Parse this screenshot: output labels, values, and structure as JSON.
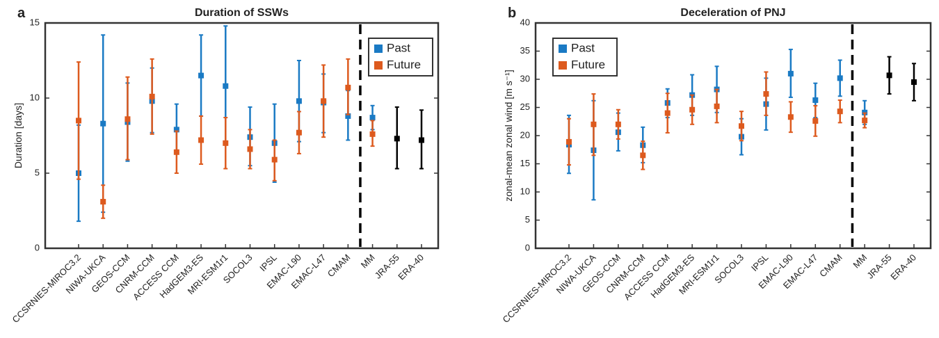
{
  "chart_data": [
    {
      "type": "errorbar",
      "panel_label": "a",
      "title": "Duration of SSWs",
      "y_label": "Duration [days]",
      "categories": [
        "CCSRNIES-MIROC3.2",
        "NIWA-UKCA",
        "GEOS-CCM",
        "CNRM-CCM",
        "ACCESS CCM",
        "HadGEM3-ES",
        "MRI-ESM1r1",
        "SOCOL3",
        "IPSL",
        "EMAC-L90",
        "EMAC-L47",
        "CMAM",
        "MM",
        "JRA-55",
        "ERA-40"
      ],
      "series": [
        {
          "name": "Past",
          "color": "#1a7ac4",
          "values": [
            5.0,
            8.3,
            8.4,
            9.8,
            7.9,
            11.5,
            10.8,
            7.4,
            7.0,
            9.8,
            9.7,
            8.8,
            8.7,
            null,
            null
          ],
          "lower": [
            1.8,
            2.4,
            5.8,
            7.7,
            6.3,
            8.8,
            7.0,
            5.5,
            4.4,
            7.1,
            7.7,
            7.2,
            7.9,
            null,
            null
          ],
          "upper": [
            8.2,
            14.2,
            11.0,
            12.0,
            9.6,
            14.2,
            14.8,
            9.4,
            9.6,
            12.5,
            11.6,
            10.5,
            9.5,
            null,
            null
          ]
        },
        {
          "name": "Future",
          "color": "#dd5a1e",
          "values": [
            8.5,
            3.1,
            8.6,
            10.1,
            6.4,
            7.2,
            7.0,
            6.6,
            5.9,
            7.7,
            9.8,
            10.7,
            7.6,
            null,
            null
          ],
          "lower": [
            4.6,
            2.0,
            5.9,
            7.6,
            5.0,
            5.6,
            5.3,
            5.3,
            4.5,
            6.3,
            7.4,
            8.9,
            6.8,
            null,
            null
          ],
          "upper": [
            12.4,
            4.2,
            11.4,
            12.6,
            7.8,
            8.8,
            8.7,
            7.9,
            7.2,
            9.1,
            12.2,
            12.6,
            8.5,
            null,
            null
          ]
        }
      ],
      "reference": {
        "color": "#000000",
        "values": [
          null,
          null,
          null,
          null,
          null,
          null,
          null,
          null,
          null,
          null,
          null,
          null,
          null,
          7.3,
          7.2
        ],
        "lower": [
          null,
          null,
          null,
          null,
          null,
          null,
          null,
          null,
          null,
          null,
          null,
          null,
          null,
          5.3,
          5.3
        ],
        "upper": [
          null,
          null,
          null,
          null,
          null,
          null,
          null,
          null,
          null,
          null,
          null,
          null,
          null,
          9.4,
          9.2
        ]
      },
      "ylim": [
        0,
        15
      ],
      "yticks": [
        0,
        5,
        10,
        15
      ],
      "legend": "upper right"
    },
    {
      "type": "errorbar",
      "panel_label": "b",
      "title": "Deceleration of PNJ",
      "y_label": "zonal-mean zonal wind [m s⁻¹]",
      "categories": [
        "CCSRNIES-MIROC3.2",
        "NIWA-UKCA",
        "GEOS-CCM",
        "CNRM-CCM",
        "ACCESS CCM",
        "HadGEM3-ES",
        "MRI-ESM1r1",
        "SOCOL3",
        "IPSL",
        "EMAC-L90",
        "EMAC-L47",
        "CMAM",
        "MM",
        "JRA-55",
        "ERA-40"
      ],
      "series": [
        {
          "name": "Past",
          "color": "#1a7ac4",
          "values": [
            18.4,
            17.4,
            20.6,
            18.3,
            25.8,
            27.2,
            28.2,
            19.8,
            25.6,
            31.0,
            26.3,
            30.2,
            24.1,
            null,
            null
          ],
          "lower": [
            13.3,
            8.6,
            17.3,
            15.2,
            23.2,
            23.6,
            24.1,
            16.6,
            21.0,
            26.8,
            23.2,
            27.0,
            22.0,
            null,
            null
          ],
          "upper": [
            23.6,
            26.2,
            24.0,
            21.5,
            28.3,
            30.8,
            32.3,
            23.0,
            30.2,
            35.3,
            29.3,
            33.4,
            26.2,
            null,
            null
          ]
        },
        {
          "name": "Future",
          "color": "#dd5a1e",
          "values": [
            18.9,
            22.0,
            22.0,
            16.5,
            24.0,
            24.6,
            25.2,
            21.7,
            27.4,
            23.3,
            22.6,
            24.3,
            22.7,
            null,
            null
          ],
          "lower": [
            14.8,
            16.5,
            19.4,
            14.0,
            20.5,
            22.0,
            22.3,
            19.1,
            23.6,
            20.6,
            19.9,
            22.3,
            21.4,
            null,
            null
          ],
          "upper": [
            23.0,
            27.4,
            24.6,
            19.0,
            27.5,
            27.2,
            28.2,
            24.3,
            31.3,
            26.0,
            25.3,
            26.3,
            24.0,
            null,
            null
          ]
        }
      ],
      "reference": {
        "color": "#000000",
        "values": [
          null,
          null,
          null,
          null,
          null,
          null,
          null,
          null,
          null,
          null,
          null,
          null,
          null,
          30.7,
          29.5
        ],
        "lower": [
          null,
          null,
          null,
          null,
          null,
          null,
          null,
          null,
          null,
          null,
          null,
          null,
          null,
          27.4,
          26.2
        ],
        "upper": [
          null,
          null,
          null,
          null,
          null,
          null,
          null,
          null,
          null,
          null,
          null,
          null,
          null,
          34.0,
          32.8
        ]
      },
      "ylim": [
        0,
        40
      ],
      "yticks": [
        0,
        5,
        10,
        15,
        20,
        25,
        30,
        35,
        40
      ],
      "legend": "upper left"
    }
  ]
}
